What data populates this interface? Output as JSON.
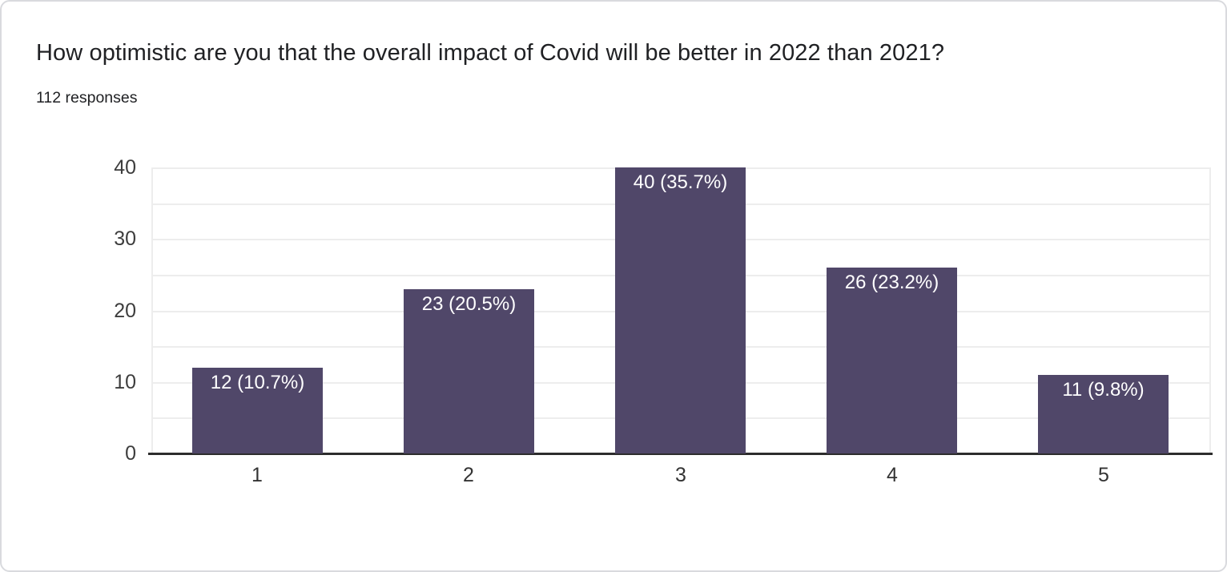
{
  "header": {
    "title": "How optimistic are you that the overall impact of Covid will be better in 2022 than 2021?",
    "responses_label": "112 responses"
  },
  "colors": {
    "bar_fill": "#504769",
    "bar_label_text": "#ffffff",
    "gridline": "#ededed",
    "axis_line": "#2d2d2d",
    "title_text": "#202124",
    "tick_label_text": "#3d3d3d",
    "card_border": "#d9dade",
    "card_background": "#ffffff"
  },
  "chart_data": {
    "type": "bar",
    "title": "How optimistic are you that the overall impact of Covid will be better in 2022 than 2021?",
    "subtitle": "112 responses",
    "responses_total": 112,
    "categories": [
      "1",
      "2",
      "3",
      "4",
      "5"
    ],
    "values": [
      12,
      23,
      40,
      26,
      11
    ],
    "percentages": [
      10.7,
      20.5,
      35.7,
      23.2,
      9.8
    ],
    "bar_labels": [
      "12 (10.7%)",
      "23 (20.5%)",
      "40 (35.7%)",
      "26 (23.2%)",
      "11 (9.8%)"
    ],
    "xlabel": "",
    "ylabel": "",
    "ylim": [
      0,
      40
    ],
    "y_major_ticks": [
      0,
      10,
      20,
      30,
      40
    ],
    "y_minor_step": 5,
    "grid": true,
    "legend_position": "none"
  }
}
